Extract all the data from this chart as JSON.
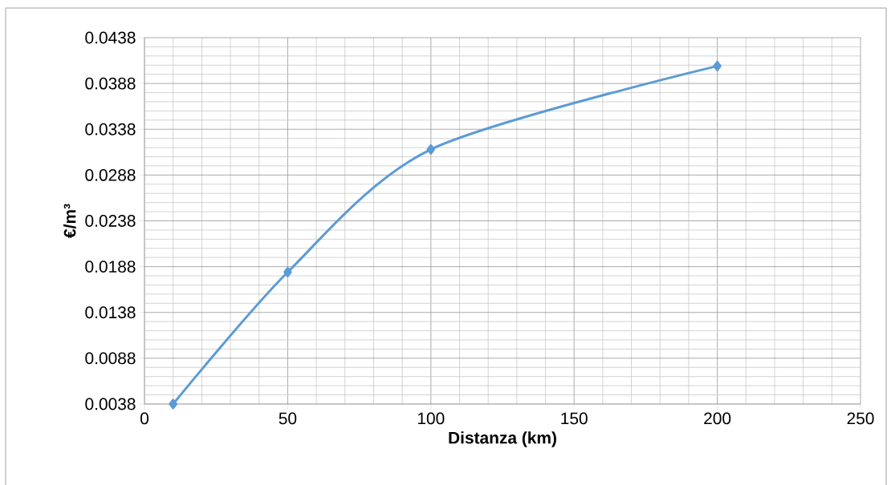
{
  "chart_data": {
    "type": "line",
    "xlabel": "Distanza (km)",
    "ylabel": "€/m³",
    "x": [
      10,
      50,
      100,
      200
    ],
    "series": [
      {
        "color": "#5b9bd5",
        "values": [
          0.0038,
          0.0182,
          0.0316,
          0.0407
        ]
      }
    ],
    "xlim": [
      0,
      250
    ],
    "xticks": [
      0,
      50,
      100,
      150,
      200,
      250
    ],
    "ylim": [
      0.0038,
      0.0438
    ],
    "yticks": [
      0.0038,
      0.0088,
      0.0138,
      0.0188,
      0.0238,
      0.0288,
      0.0338,
      0.0388,
      0.0438
    ],
    "grid": true,
    "marker": "diamond",
    "line_style": "solid"
  }
}
